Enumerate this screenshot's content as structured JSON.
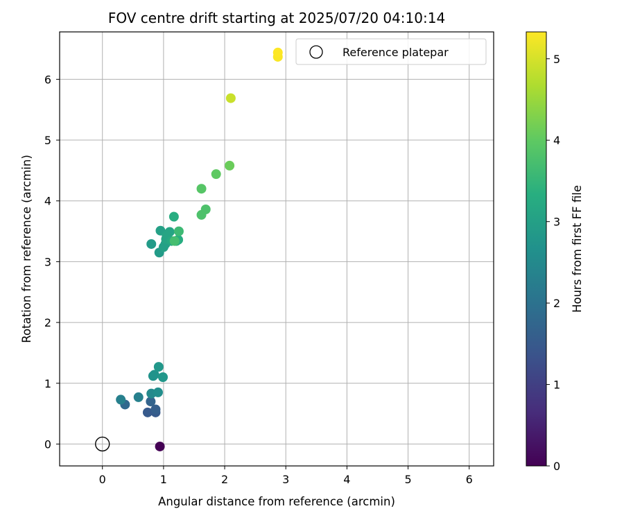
{
  "chart_data": {
    "type": "scatter",
    "title": "FOV centre drift starting at 2025/07/20 04:10:14",
    "xlabel": "Angular distance from reference (arcmin)",
    "ylabel": "Rotation from reference (arcmin)",
    "xlim": [
      -0.7,
      6.4
    ],
    "ylim": [
      -0.36,
      6.78
    ],
    "xticks": [
      0,
      1,
      2,
      3,
      4,
      5,
      6
    ],
    "yticks": [
      0,
      1,
      2,
      3,
      4,
      5,
      6
    ],
    "grid": true,
    "legend": {
      "placement": "top-right",
      "entries": [
        "Reference platepar"
      ]
    },
    "colorbar": {
      "label": "Hours from first FF file",
      "range": [
        0,
        5.33
      ],
      "ticks": [
        0,
        1,
        2,
        3,
        4,
        5
      ],
      "colormap": "viridis"
    },
    "reference_point": {
      "x": 0,
      "y": 0
    },
    "points": [
      {
        "x": 0.94,
        "y": -0.04,
        "hours": 0.0
      },
      {
        "x": 0.74,
        "y": 0.52,
        "hours": 1.5
      },
      {
        "x": 0.87,
        "y": 0.52,
        "hours": 1.5
      },
      {
        "x": 0.87,
        "y": 0.57,
        "hours": 1.6
      },
      {
        "x": 0.79,
        "y": 0.7,
        "hours": 1.7
      },
      {
        "x": 0.37,
        "y": 0.65,
        "hours": 1.8
      },
      {
        "x": 0.3,
        "y": 0.73,
        "hours": 2.3
      },
      {
        "x": 0.59,
        "y": 0.77,
        "hours": 2.3
      },
      {
        "x": 0.8,
        "y": 0.83,
        "hours": 2.5
      },
      {
        "x": 0.91,
        "y": 0.85,
        "hours": 2.6
      },
      {
        "x": 0.83,
        "y": 1.12,
        "hours": 2.7
      },
      {
        "x": 0.85,
        "y": 1.14,
        "hours": 2.7
      },
      {
        "x": 0.99,
        "y": 1.1,
        "hours": 2.8
      },
      {
        "x": 0.92,
        "y": 1.27,
        "hours": 2.8
      },
      {
        "x": 0.8,
        "y": 3.29,
        "hours": 2.9
      },
      {
        "x": 0.93,
        "y": 3.15,
        "hours": 2.9
      },
      {
        "x": 1.0,
        "y": 3.24,
        "hours": 3.0
      },
      {
        "x": 1.03,
        "y": 3.29,
        "hours": 3.0
      },
      {
        "x": 0.95,
        "y": 3.51,
        "hours": 3.0
      },
      {
        "x": 1.05,
        "y": 3.43,
        "hours": 3.1
      },
      {
        "x": 1.1,
        "y": 3.49,
        "hours": 3.1
      },
      {
        "x": 1.04,
        "y": 3.37,
        "hours": 3.1
      },
      {
        "x": 1.13,
        "y": 3.34,
        "hours": 3.2
      },
      {
        "x": 1.21,
        "y": 3.34,
        "hours": 3.2
      },
      {
        "x": 1.24,
        "y": 3.36,
        "hours": 3.3
      },
      {
        "x": 1.17,
        "y": 3.74,
        "hours": 3.3
      },
      {
        "x": 1.25,
        "y": 3.5,
        "hours": 3.6
      },
      {
        "x": 1.18,
        "y": 3.34,
        "hours": 3.7
      },
      {
        "x": 1.62,
        "y": 3.77,
        "hours": 3.8
      },
      {
        "x": 1.69,
        "y": 3.86,
        "hours": 3.8
      },
      {
        "x": 1.62,
        "y": 4.2,
        "hours": 3.9
      },
      {
        "x": 1.86,
        "y": 4.44,
        "hours": 4.0
      },
      {
        "x": 2.08,
        "y": 4.58,
        "hours": 4.1
      },
      {
        "x": 2.1,
        "y": 5.69,
        "hours": 4.9
      },
      {
        "x": 2.87,
        "y": 6.37,
        "hours": 5.3
      },
      {
        "x": 2.87,
        "y": 6.44,
        "hours": 5.33
      }
    ]
  }
}
